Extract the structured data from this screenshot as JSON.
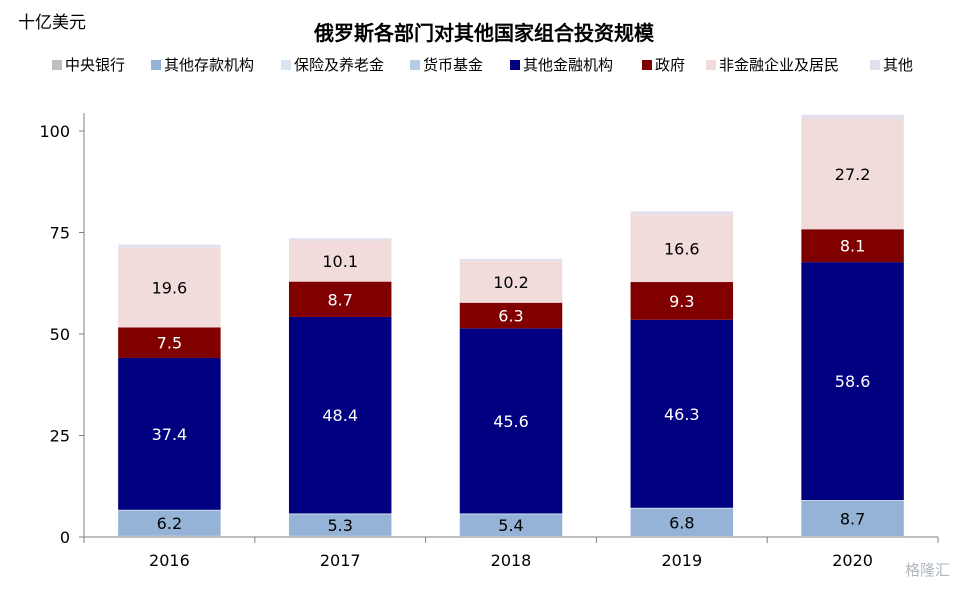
{
  "chart_data": {
    "type": "bar",
    "stacked": true,
    "title": "俄罗斯各部门对其他国家组合投资规模",
    "unit_label": "十亿美元",
    "categories": [
      "2016",
      "2017",
      "2018",
      "2019",
      "2020"
    ],
    "ylim": [
      0,
      100
    ],
    "yticks": [
      0,
      25,
      50,
      75,
      100
    ],
    "grid": false,
    "legend_position": "top",
    "series": [
      {
        "name": "中央银行",
        "color": "#bfbfbf",
        "values": [
          0.3,
          0.3,
          0.2,
          0.2,
          0.2
        ],
        "show_labels": false
      },
      {
        "name": "其他存款机构",
        "color": "#95b3d7",
        "values": [
          6.2,
          5.3,
          5.4,
          6.8,
          8.7
        ],
        "show_labels": true,
        "label_color": "#000000"
      },
      {
        "name": "保险及养老金",
        "color": "#dbe5f1",
        "values": [
          0.1,
          0.1,
          0.1,
          0.1,
          0.1
        ],
        "show_labels": false
      },
      {
        "name": "货币基金",
        "color": "#b8cce4",
        "values": [
          0.1,
          0.1,
          0.1,
          0.1,
          0.1
        ],
        "show_labels": false
      },
      {
        "name": "其他金融机构",
        "color": "#000080",
        "values": [
          37.4,
          48.4,
          45.6,
          46.3,
          58.6
        ],
        "show_labels": true,
        "label_color": "#ffffff"
      },
      {
        "name": "政府",
        "color": "#800000",
        "values": [
          7.5,
          8.7,
          6.3,
          9.3,
          8.1
        ],
        "show_labels": true,
        "label_color": "#ffffff"
      },
      {
        "name": "非金融企业及居民",
        "color": "#f2dcdb",
        "values": [
          19.6,
          10.1,
          10.2,
          16.6,
          27.2
        ],
        "show_labels": true,
        "label_color": "#000000"
      },
      {
        "name": "其他",
        "color": "#e4dfec",
        "values": [
          0.8,
          0.6,
          0.6,
          0.8,
          1.0
        ],
        "show_labels": false
      }
    ]
  },
  "watermark": "格隆汇"
}
